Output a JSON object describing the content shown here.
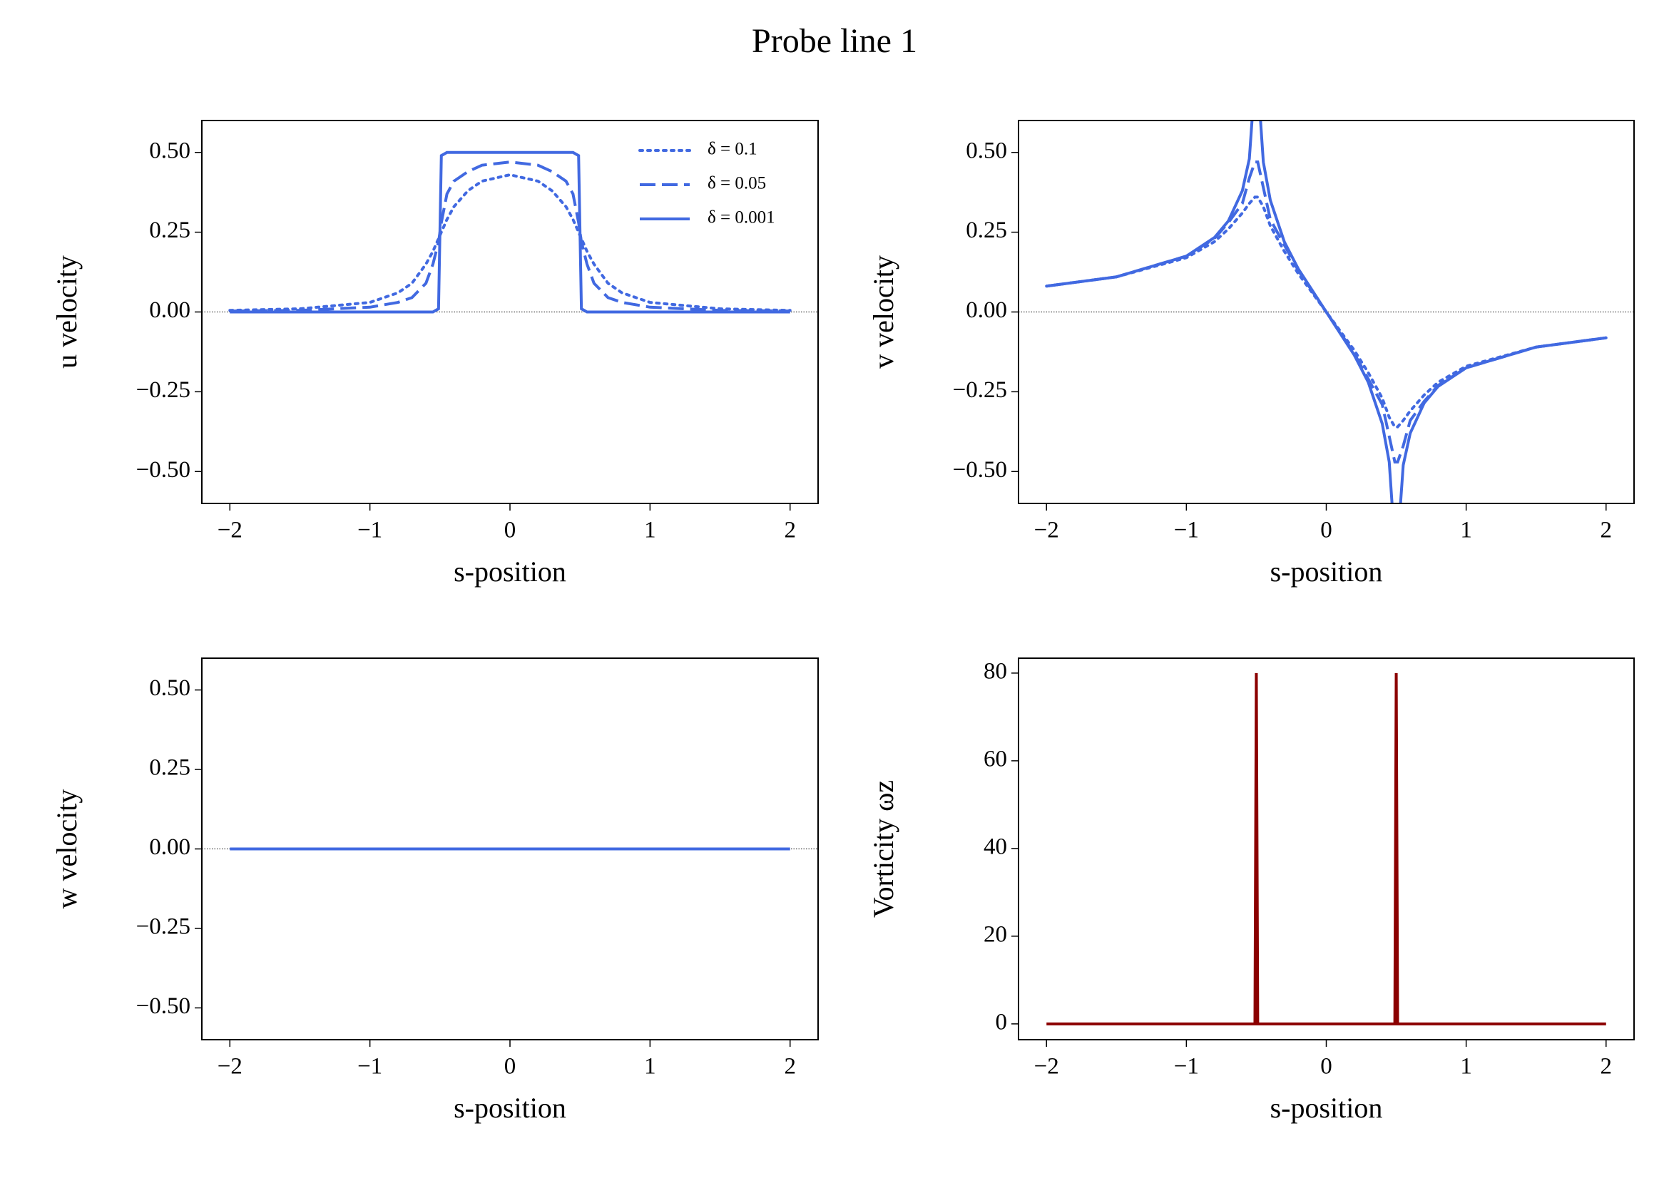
{
  "title": "Probe line 1",
  "chart_data": [
    {
      "type": "line",
      "xlabel": "s-position",
      "ylabel": "u velocity",
      "x": [
        -2,
        -1.5,
        -1,
        -0.8,
        -0.7,
        -0.6,
        -0.55,
        -0.51,
        -0.49,
        -0.45,
        -0.4,
        -0.3,
        -0.2,
        0,
        0.2,
        0.3,
        0.4,
        0.45,
        0.49,
        0.51,
        0.55,
        0.6,
        0.7,
        0.8,
        1,
        1.5,
        2
      ],
      "series": [
        {
          "name": "δ = 0.1",
          "color": "#4169e1",
          "dash": "dotted",
          "values": [
            0.005,
            0.01,
            0.03,
            0.06,
            0.09,
            0.15,
            0.19,
            0.23,
            0.25,
            0.29,
            0.33,
            0.38,
            0.41,
            0.43,
            0.41,
            0.38,
            0.33,
            0.29,
            0.25,
            0.23,
            0.19,
            0.15,
            0.09,
            0.06,
            0.03,
            0.01,
            0.005
          ]
        },
        {
          "name": "δ = 0.05",
          "color": "#4169e1",
          "dash": "dashed",
          "values": [
            0.003,
            0.005,
            0.015,
            0.03,
            0.045,
            0.09,
            0.15,
            0.22,
            0.28,
            0.37,
            0.41,
            0.44,
            0.46,
            0.47,
            0.46,
            0.44,
            0.41,
            0.37,
            0.28,
            0.22,
            0.15,
            0.09,
            0.045,
            0.03,
            0.015,
            0.005,
            0.003
          ]
        },
        {
          "name": "δ = 0.001",
          "color": "#4169e1",
          "dash": "solid",
          "values": [
            0,
            0,
            0,
            0,
            0,
            0,
            0,
            0.01,
            0.49,
            0.5,
            0.5,
            0.5,
            0.5,
            0.5,
            0.5,
            0.5,
            0.5,
            0.5,
            0.49,
            0.01,
            0,
            0,
            0,
            0,
            0,
            0,
            0
          ]
        }
      ],
      "xlim": [
        -2.2,
        2.2
      ],
      "ylim": [
        -0.6,
        0.6
      ],
      "xticks": [
        {
          "value": -2,
          "label": "−2"
        },
        {
          "value": -1,
          "label": "−1"
        },
        0,
        1,
        2
      ],
      "yticks": [
        {
          "value": -0.5,
          "label": "−0.50"
        },
        {
          "value": -0.25,
          "label": "−0.25"
        },
        {
          "value": 0,
          "label": "0.00"
        },
        {
          "value": 0.25,
          "label": "0.25"
        },
        {
          "value": 0.5,
          "label": "0.50"
        }
      ],
      "hline": 0,
      "legend": "upper right"
    },
    {
      "type": "line",
      "xlabel": "s-position",
      "ylabel": "v velocity",
      "x": [
        -2,
        -1.5,
        -1,
        -0.8,
        -0.7,
        -0.6,
        -0.55,
        -0.51,
        -0.49,
        -0.45,
        -0.4,
        -0.3,
        -0.2,
        0,
        0.2,
        0.3,
        0.4,
        0.45,
        0.49,
        0.51,
        0.55,
        0.6,
        0.7,
        0.8,
        1,
        1.5,
        2
      ],
      "series": [
        {
          "color": "#4169e1",
          "dash": "dotted",
          "values": [
            0.081,
            0.11,
            0.17,
            0.22,
            0.26,
            0.31,
            0.34,
            0.36,
            0.36,
            0.33,
            0.27,
            0.19,
            0.12,
            0,
            -0.12,
            -0.19,
            -0.27,
            -0.33,
            -0.36,
            -0.36,
            -0.34,
            -0.31,
            -0.26,
            -0.22,
            -0.17,
            -0.11,
            -0.081
          ]
        },
        {
          "color": "#4169e1",
          "dash": "dashed",
          "values": [
            0.081,
            0.11,
            0.175,
            0.23,
            0.28,
            0.34,
            0.42,
            0.47,
            0.47,
            0.39,
            0.29,
            0.21,
            0.13,
            0,
            -0.13,
            -0.21,
            -0.29,
            -0.39,
            -0.47,
            -0.47,
            -0.42,
            -0.34,
            -0.28,
            -0.23,
            -0.175,
            -0.11,
            -0.081
          ]
        },
        {
          "color": "#4169e1",
          "dash": "solid",
          "values": [
            0.081,
            0.11,
            0.175,
            0.233,
            0.285,
            0.38,
            0.48,
            0.73,
            0.73,
            0.47,
            0.35,
            0.22,
            0.135,
            0,
            -0.135,
            -0.22,
            -0.35,
            -0.47,
            -0.73,
            -0.73,
            -0.48,
            -0.38,
            -0.285,
            -0.233,
            -0.175,
            -0.11,
            -0.081
          ]
        }
      ],
      "xlim": [
        -2.2,
        2.2
      ],
      "ylim": [
        -0.6,
        0.6
      ],
      "xticks": [
        {
          "value": -2,
          "label": "−2"
        },
        {
          "value": -1,
          "label": "−1"
        },
        0,
        1,
        2
      ],
      "yticks": [
        {
          "value": -0.5,
          "label": "−0.50"
        },
        {
          "value": -0.25,
          "label": "−0.25"
        },
        {
          "value": 0,
          "label": "0.00"
        },
        {
          "value": 0.25,
          "label": "0.25"
        },
        {
          "value": 0.5,
          "label": "0.50"
        }
      ],
      "hline": 0
    },
    {
      "type": "line",
      "xlabel": "s-position",
      "ylabel": "w velocity",
      "x": [
        -2,
        2
      ],
      "series": [
        {
          "color": "#4169e1",
          "dash": "solid",
          "values": [
            0,
            0
          ]
        }
      ],
      "xlim": [
        -2.2,
        2.2
      ],
      "ylim": [
        -0.6,
        0.6
      ],
      "xticks": [
        {
          "value": -2,
          "label": "−2"
        },
        {
          "value": -1,
          "label": "−1"
        },
        0,
        1,
        2
      ],
      "yticks": [
        {
          "value": -0.5,
          "label": "−0.50"
        },
        {
          "value": -0.25,
          "label": "−0.25"
        },
        {
          "value": 0,
          "label": "0.00"
        },
        {
          "value": 0.25,
          "label": "0.25"
        },
        {
          "value": 0.5,
          "label": "0.50"
        }
      ],
      "hline": 0
    },
    {
      "type": "line",
      "xlabel": "s-position",
      "ylabel": "Vorticity ωz",
      "x": [
        -2,
        -0.51,
        -0.5,
        -0.49,
        0.49,
        0.5,
        0.51,
        2
      ],
      "series": [
        {
          "color": "#8b0000",
          "dash": "solid",
          "values": [
            0,
            0,
            80,
            0,
            0,
            80,
            0,
            0
          ]
        }
      ],
      "xlim": [
        -2.2,
        2.2
      ],
      "ylim": [
        -3.6,
        83.4
      ],
      "xticks": [
        {
          "value": -2,
          "label": "−2"
        },
        {
          "value": -1,
          "label": "−1"
        },
        0,
        1,
        2
      ],
      "yticks": [
        0,
        20,
        40,
        60,
        80
      ]
    }
  ]
}
